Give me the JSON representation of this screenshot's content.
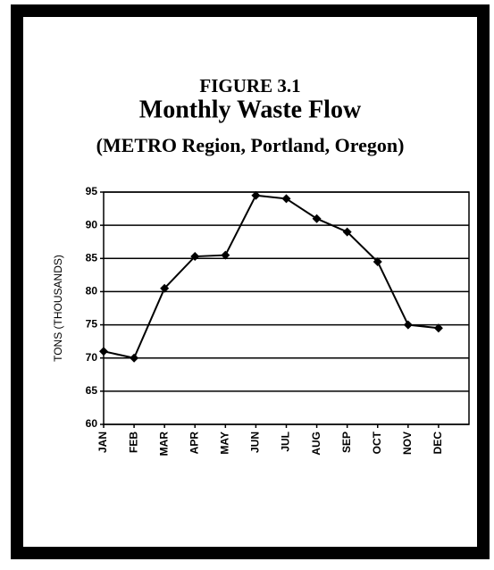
{
  "chart_data": {
    "type": "line",
    "title": "Monthly Waste Flow",
    "figure_label": "FIGURE 3.1",
    "subtitle": "(METRO Region, Portland, Oregon)",
    "y_label": "TONS (THOUSANDS)",
    "categories": [
      "JAN",
      "FEB",
      "MAR",
      "APR",
      "MAY",
      "JUN",
      "JUL",
      "AUG",
      "SEP",
      "OCT",
      "NOV",
      "DEC"
    ],
    "values": [
      71,
      70,
      80.5,
      85.3,
      85.5,
      94.5,
      94,
      91,
      89,
      84.5,
      75,
      74.5
    ],
    "color": "#000000",
    "ylim": [
      60,
      95
    ],
    "yticks": [
      60,
      65,
      70,
      75,
      80,
      85,
      90,
      95
    ],
    "grid": true
  }
}
